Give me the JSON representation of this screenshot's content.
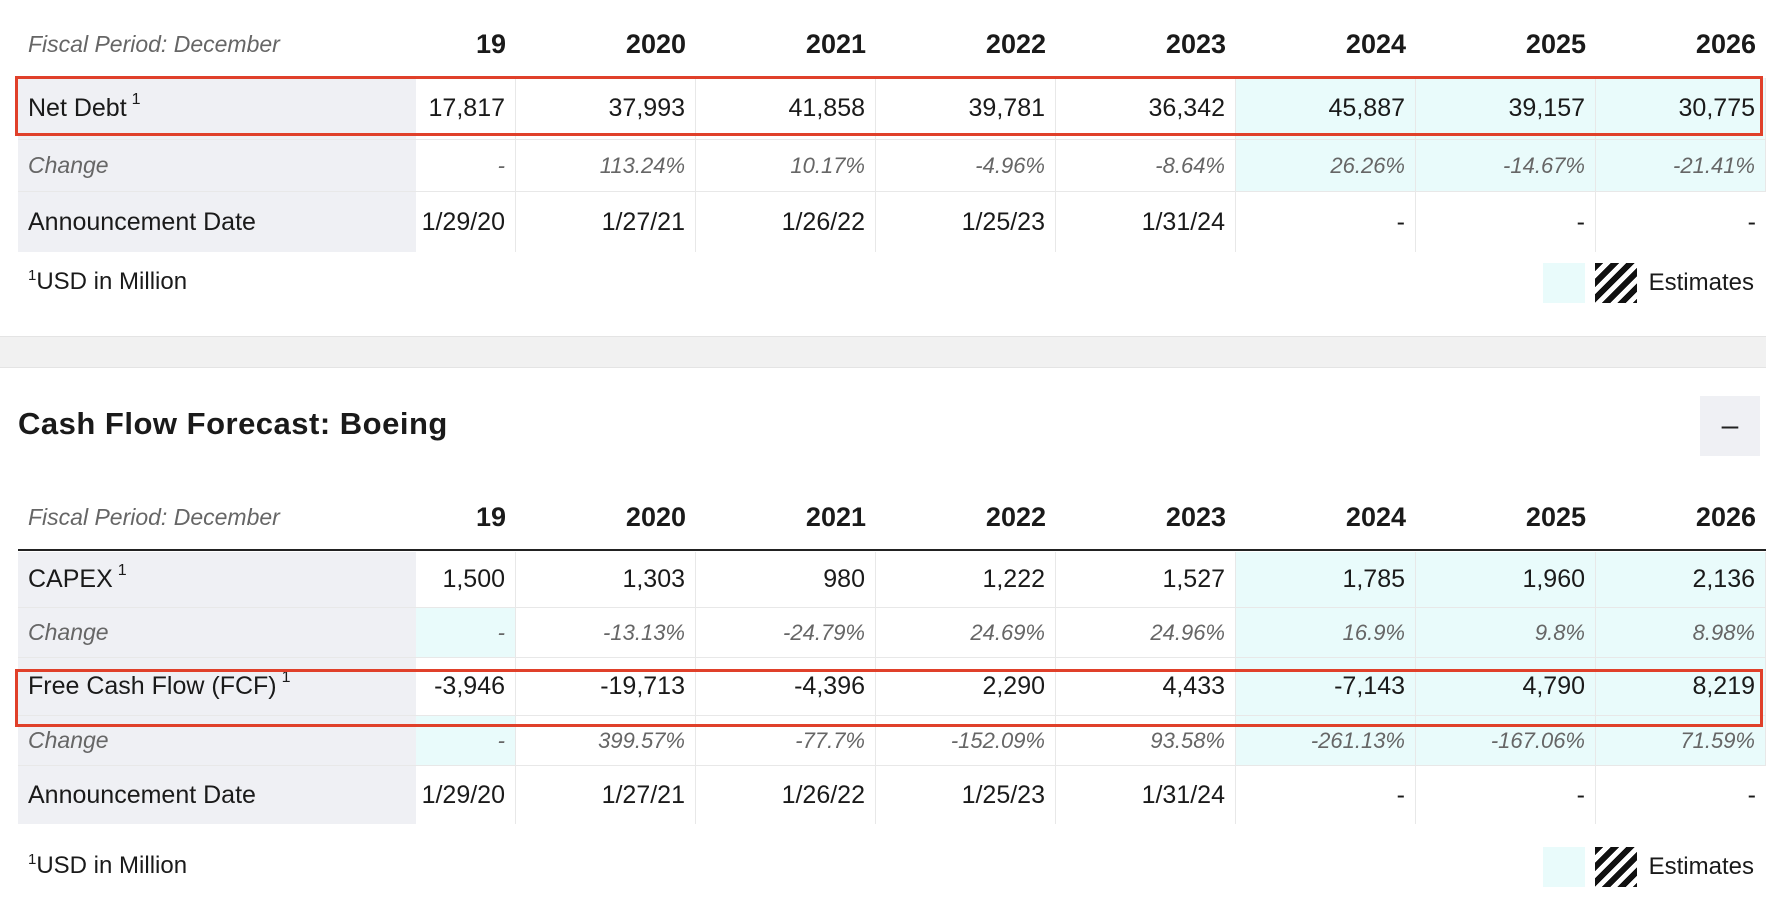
{
  "colors": {
    "estimate_bg": "#e9fbfb",
    "label_bg": "#eff0f4",
    "highlight_border": "#e0402a"
  },
  "net_debt_table": {
    "fiscal_label": "Fiscal Period: December",
    "years": [
      "19",
      "2020",
      "2021",
      "2022",
      "2023",
      "2024",
      "2025",
      "2026"
    ],
    "net_debt": {
      "label": "Net Debt",
      "sup": "1",
      "values": [
        "17,817",
        "37,993",
        "41,858",
        "39,781",
        "36,342",
        "45,887",
        "39,157",
        "30,775"
      ]
    },
    "change": {
      "label": "Change",
      "values": [
        "-",
        "113.24%",
        "10.17%",
        "-4.96%",
        "-8.64%",
        "26.26%",
        "-14.67%",
        "-21.41%"
      ]
    },
    "announcement": {
      "label": "Announcement Date",
      "values": [
        "1/29/20",
        "1/27/21",
        "1/26/22",
        "1/25/23",
        "1/31/24",
        "-",
        "-",
        "-"
      ]
    },
    "footnote_sup": "1",
    "footnote": "USD in Million",
    "legend_label": "Estimates"
  },
  "cash_flow": {
    "title": "Cash Flow Forecast: Boeing",
    "collapse_glyph": "–",
    "fiscal_label": "Fiscal Period: December",
    "years": [
      "19",
      "2020",
      "2021",
      "2022",
      "2023",
      "2024",
      "2025",
      "2026"
    ],
    "capex": {
      "label": "CAPEX",
      "sup": "1",
      "values": [
        "1,500",
        "1,303",
        "980",
        "1,222",
        "1,527",
        "1,785",
        "1,960",
        "2,136"
      ]
    },
    "capex_change": {
      "label": "Change",
      "values": [
        "-",
        "-13.13%",
        "-24.79%",
        "24.69%",
        "24.96%",
        "16.9%",
        "9.8%",
        "8.98%"
      ]
    },
    "fcf": {
      "label": "Free Cash Flow (FCF)",
      "sup": "1",
      "values": [
        "-3,946",
        "-19,713",
        "-4,396",
        "2,290",
        "4,433",
        "-7,143",
        "4,790",
        "8,219"
      ]
    },
    "fcf_change": {
      "label": "Change",
      "values": [
        "-",
        "399.57%",
        "-77.7%",
        "-152.09%",
        "93.58%",
        "-261.13%",
        "-167.06%",
        "71.59%"
      ]
    },
    "announcement": {
      "label": "Announcement Date",
      "values": [
        "1/29/20",
        "1/27/21",
        "1/26/22",
        "1/25/23",
        "1/31/24",
        "-",
        "-",
        "-"
      ]
    },
    "footnote_sup": "1",
    "footnote": "USD in Million",
    "legend_label": "Estimates"
  }
}
